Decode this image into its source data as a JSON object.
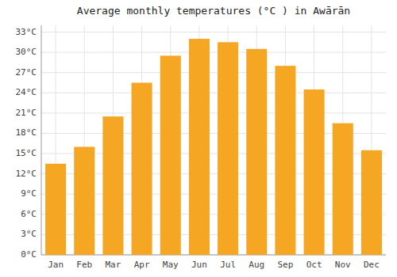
{
  "chart_data": {
    "type": "bar",
    "title": "Average monthly temperatures (°C ) in Awārān",
    "categories": [
      "Jan",
      "Feb",
      "Mar",
      "Apr",
      "May",
      "Jun",
      "Jul",
      "Aug",
      "Sep",
      "Oct",
      "Nov",
      "Dec"
    ],
    "values": [
      13.5,
      16,
      20.5,
      25.5,
      29.5,
      32,
      31.5,
      30.5,
      28,
      24.5,
      19.5,
      15.5
    ],
    "color": "#F5A623",
    "ylim": [
      0,
      34
    ],
    "yticks": [
      {
        "value": 0,
        "label": "0°C"
      },
      {
        "value": 3,
        "label": "3°C"
      },
      {
        "value": 6,
        "label": "6°C"
      },
      {
        "value": 9,
        "label": "9°C"
      },
      {
        "value": 12,
        "label": "12°C"
      },
      {
        "value": 15,
        "label": "15°C"
      },
      {
        "value": 18,
        "label": "18°C"
      },
      {
        "value": 21,
        "label": "21°C"
      },
      {
        "value": 24,
        "label": "24°C"
      },
      {
        "value": 27,
        "label": "27°C"
      },
      {
        "value": 30,
        "label": "30°C"
      },
      {
        "value": 33,
        "label": "33°C"
      }
    ],
    "grid": true
  }
}
